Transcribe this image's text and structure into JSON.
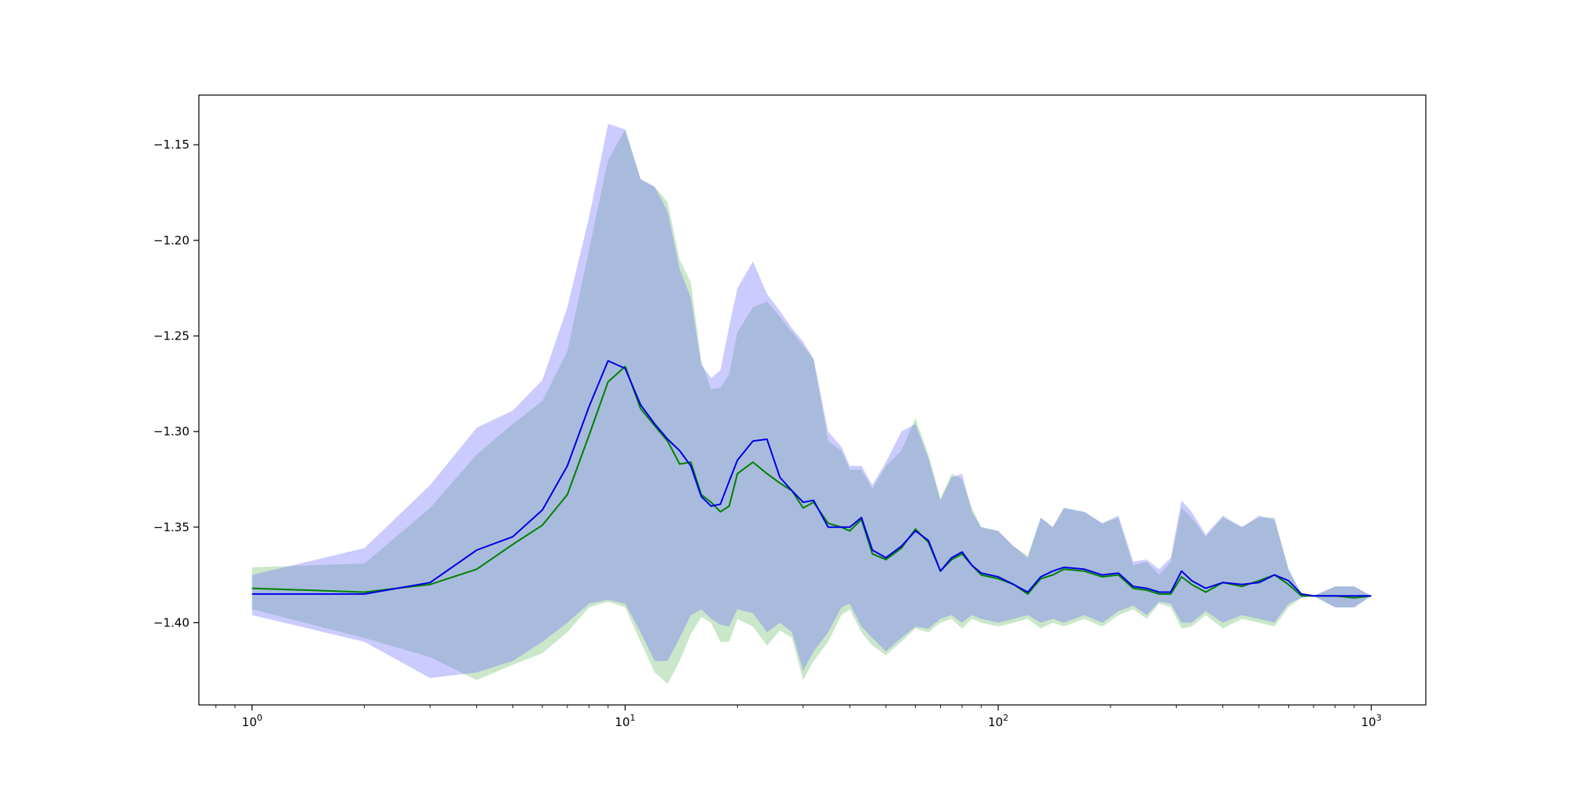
{
  "chart_data": {
    "type": "line",
    "title": "",
    "xlabel": "",
    "ylabel": "",
    "xscale": "log",
    "xlim": [
      0.72,
      1400
    ],
    "ylim": [
      -1.443,
      -1.124
    ],
    "grid": false,
    "legend": "none",
    "x_ticks": [
      {
        "value": 1,
        "base": "10",
        "exp": "0"
      },
      {
        "value": 10,
        "base": "10",
        "exp": "1"
      },
      {
        "value": 100,
        "base": "10",
        "exp": "2"
      },
      {
        "value": 1000,
        "base": "10",
        "exp": "3"
      }
    ],
    "y_ticks": [
      {
        "value": -1.15,
        "label": "−1.15"
      },
      {
        "value": -1.2,
        "label": "−1.20"
      },
      {
        "value": -1.25,
        "label": "−1.25"
      },
      {
        "value": -1.3,
        "label": "−1.30"
      },
      {
        "value": -1.35,
        "label": "−1.35"
      },
      {
        "value": -1.4,
        "label": "−1.40"
      }
    ],
    "series": [
      {
        "color": "#008000",
        "band_color": "#2ca02c",
        "band_opacity": 0.25,
        "x": [
          1,
          2,
          3,
          4,
          5,
          6,
          7,
          8,
          9,
          10,
          11,
          12,
          13,
          14,
          15,
          16,
          17,
          18,
          19,
          20,
          22,
          24,
          26,
          28,
          30,
          32,
          35,
          38,
          40,
          43,
          46,
          50,
          55,
          60,
          65,
          70,
          75,
          80,
          85,
          90,
          100,
          110,
          120,
          130,
          140,
          150,
          170,
          190,
          210,
          230,
          250,
          270,
          290,
          310,
          330,
          360,
          400,
          450,
          500,
          550,
          600,
          650,
          700,
          800,
          900,
          1000
        ],
        "y": [
          -1.382,
          -1.384,
          -1.38,
          -1.372,
          -1.359,
          -1.349,
          -1.333,
          -1.302,
          -1.274,
          -1.266,
          -1.288,
          -1.297,
          -1.305,
          -1.317,
          -1.316,
          -1.333,
          -1.337,
          -1.342,
          -1.339,
          -1.322,
          -1.316,
          -1.322,
          -1.327,
          -1.331,
          -1.34,
          -1.337,
          -1.348,
          -1.35,
          -1.352,
          -1.346,
          -1.364,
          -1.367,
          -1.361,
          -1.351,
          -1.358,
          -1.373,
          -1.367,
          -1.364,
          -1.37,
          -1.375,
          -1.377,
          -1.38,
          -1.385,
          -1.377,
          -1.375,
          -1.372,
          -1.373,
          -1.376,
          -1.375,
          -1.382,
          -1.383,
          -1.385,
          -1.385,
          -1.376,
          -1.38,
          -1.384,
          -1.379,
          -1.381,
          -1.378,
          -1.375,
          -1.38,
          -1.386,
          -1.386,
          -1.386,
          -1.387,
          -1.386
        ],
        "lower": [
          -1.393,
          -1.408,
          -1.418,
          -1.43,
          -1.422,
          -1.416,
          -1.405,
          -1.392,
          -1.389,
          -1.392,
          -1.41,
          -1.426,
          -1.432,
          -1.42,
          -1.406,
          -1.397,
          -1.4,
          -1.41,
          -1.41,
          -1.398,
          -1.402,
          -1.412,
          -1.404,
          -1.408,
          -1.43,
          -1.42,
          -1.41,
          -1.396,
          -1.393,
          -1.405,
          -1.412,
          -1.417,
          -1.41,
          -1.403,
          -1.405,
          -1.4,
          -1.398,
          -1.403,
          -1.398,
          -1.4,
          -1.402,
          -1.4,
          -1.398,
          -1.403,
          -1.4,
          -1.402,
          -1.398,
          -1.402,
          -1.396,
          -1.393,
          -1.398,
          -1.39,
          -1.392,
          -1.403,
          -1.402,
          -1.396,
          -1.403,
          -1.398,
          -1.4,
          -1.402,
          -1.392,
          -1.387,
          -1.386,
          -1.392,
          -1.392,
          -1.386
        ],
        "upper": [
          -1.371,
          -1.369,
          -1.34,
          -1.312,
          -1.296,
          -1.284,
          -1.258,
          -1.205,
          -1.158,
          -1.142,
          -1.168,
          -1.172,
          -1.18,
          -1.21,
          -1.222,
          -1.263,
          -1.278,
          -1.277,
          -1.27,
          -1.248,
          -1.235,
          -1.232,
          -1.24,
          -1.248,
          -1.255,
          -1.262,
          -1.305,
          -1.31,
          -1.32,
          -1.32,
          -1.33,
          -1.318,
          -1.31,
          -1.293,
          -1.312,
          -1.335,
          -1.322,
          -1.325,
          -1.34,
          -1.35,
          -1.352,
          -1.36,
          -1.365,
          -1.345,
          -1.35,
          -1.34,
          -1.342,
          -1.348,
          -1.345,
          -1.37,
          -1.368,
          -1.375,
          -1.368,
          -1.34,
          -1.345,
          -1.355,
          -1.345,
          -1.35,
          -1.345,
          -1.345,
          -1.372,
          -1.385,
          -1.386,
          -1.381,
          -1.381,
          -1.386
        ]
      },
      {
        "color": "#0000e6",
        "band_color": "#6b6bff",
        "band_opacity": 0.35,
        "x": [
          1,
          2,
          3,
          4,
          5,
          6,
          7,
          8,
          9,
          10,
          11,
          12,
          13,
          14,
          15,
          16,
          17,
          18,
          19,
          20,
          22,
          24,
          26,
          28,
          30,
          32,
          35,
          38,
          40,
          43,
          46,
          50,
          55,
          60,
          65,
          70,
          75,
          80,
          85,
          90,
          100,
          110,
          120,
          130,
          140,
          150,
          170,
          190,
          210,
          230,
          250,
          270,
          290,
          310,
          330,
          360,
          400,
          450,
          500,
          550,
          600,
          650,
          700,
          800,
          900,
          1000
        ],
        "y": [
          -1.385,
          -1.385,
          -1.379,
          -1.362,
          -1.355,
          -1.341,
          -1.318,
          -1.287,
          -1.263,
          -1.267,
          -1.286,
          -1.296,
          -1.304,
          -1.31,
          -1.318,
          -1.334,
          -1.339,
          -1.338,
          -1.326,
          -1.315,
          -1.305,
          -1.304,
          -1.324,
          -1.331,
          -1.337,
          -1.336,
          -1.35,
          -1.35,
          -1.35,
          -1.345,
          -1.362,
          -1.366,
          -1.36,
          -1.352,
          -1.357,
          -1.373,
          -1.366,
          -1.363,
          -1.37,
          -1.374,
          -1.376,
          -1.38,
          -1.384,
          -1.376,
          -1.373,
          -1.371,
          -1.372,
          -1.375,
          -1.374,
          -1.381,
          -1.382,
          -1.384,
          -1.384,
          -1.373,
          -1.378,
          -1.382,
          -1.379,
          -1.38,
          -1.379,
          -1.375,
          -1.378,
          -1.385,
          -1.386,
          -1.386,
          -1.386,
          -1.386
        ],
        "lower": [
          -1.396,
          -1.41,
          -1.429,
          -1.426,
          -1.42,
          -1.41,
          -1.4,
          -1.39,
          -1.388,
          -1.39,
          -1.405,
          -1.42,
          -1.42,
          -1.408,
          -1.396,
          -1.393,
          -1.398,
          -1.401,
          -1.402,
          -1.393,
          -1.395,
          -1.405,
          -1.4,
          -1.405,
          -1.425,
          -1.415,
          -1.405,
          -1.392,
          -1.39,
          -1.402,
          -1.408,
          -1.415,
          -1.408,
          -1.402,
          -1.403,
          -1.398,
          -1.396,
          -1.4,
          -1.396,
          -1.398,
          -1.4,
          -1.398,
          -1.396,
          -1.4,
          -1.398,
          -1.4,
          -1.396,
          -1.4,
          -1.394,
          -1.391,
          -1.396,
          -1.389,
          -1.39,
          -1.4,
          -1.4,
          -1.394,
          -1.4,
          -1.396,
          -1.398,
          -1.4,
          -1.39,
          -1.387,
          -1.386,
          -1.392,
          -1.392,
          -1.386
        ],
        "upper": [
          -1.375,
          -1.361,
          -1.328,
          -1.298,
          -1.289,
          -1.273,
          -1.235,
          -1.188,
          -1.139,
          -1.142,
          -1.168,
          -1.172,
          -1.185,
          -1.215,
          -1.23,
          -1.265,
          -1.272,
          -1.268,
          -1.245,
          -1.225,
          -1.211,
          -1.228,
          -1.237,
          -1.246,
          -1.253,
          -1.262,
          -1.3,
          -1.308,
          -1.318,
          -1.318,
          -1.328,
          -1.316,
          -1.3,
          -1.296,
          -1.314,
          -1.336,
          -1.324,
          -1.322,
          -1.342,
          -1.35,
          -1.352,
          -1.36,
          -1.366,
          -1.345,
          -1.35,
          -1.34,
          -1.342,
          -1.348,
          -1.344,
          -1.368,
          -1.367,
          -1.372,
          -1.366,
          -1.336,
          -1.342,
          -1.354,
          -1.344,
          -1.35,
          -1.344,
          -1.346,
          -1.372,
          -1.385,
          -1.386,
          -1.381,
          -1.381,
          -1.386
        ]
      }
    ]
  }
}
